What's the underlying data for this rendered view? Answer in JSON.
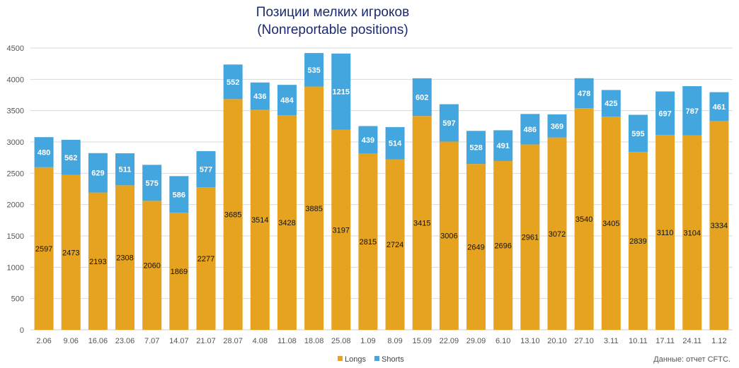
{
  "chart_data": {
    "type": "bar",
    "stacked": true,
    "title": "Позиции мелких игроков",
    "subtitle": "(Nonreportable positions)",
    "xlabel": "",
    "ylabel": "",
    "ylim": [
      0,
      4500
    ],
    "yticks": [
      0,
      500,
      1000,
      1500,
      2000,
      2500,
      3000,
      3500,
      4000,
      4500
    ],
    "grid": true,
    "legend_position": "bottom",
    "categories": [
      "2.06",
      "9.06",
      "16.06",
      "23.06",
      "7.07",
      "14.07",
      "21.07",
      "28.07",
      "4.08",
      "11.08",
      "18.08",
      "25.08",
      "1.09",
      "8.09",
      "15.09",
      "22.09",
      "29.09",
      "6.10",
      "13.10",
      "20.10",
      "27.10",
      "3.11",
      "10.11",
      "17.11",
      "24.11",
      "1.12"
    ],
    "series": [
      {
        "name": "Longs",
        "color": "#e5a320",
        "label_color": "#111111",
        "values": [
          2597,
          2473,
          2193,
          2308,
          2060,
          1869,
          2277,
          3685,
          3514,
          3428,
          3885,
          3197,
          2815,
          2724,
          3415,
          3006,
          2649,
          2696,
          2961,
          3072,
          3540,
          3405,
          2839,
          3110,
          3104,
          3334
        ]
      },
      {
        "name": "Shorts",
        "color": "#44a6de",
        "label_color": "#ffffff",
        "values": [
          480,
          562,
          629,
          511,
          575,
          586,
          577,
          552,
          436,
          484,
          535,
          1215,
          439,
          514,
          602,
          597,
          528,
          491,
          486,
          369,
          478,
          425,
          595,
          697,
          787,
          461
        ]
      }
    ]
  },
  "source": "Данные: отчет CFTC."
}
